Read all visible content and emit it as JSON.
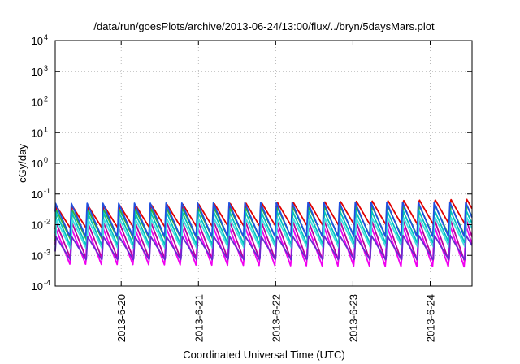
{
  "chart_data": {
    "type": "line",
    "title": "/data/run/goesPlots/archive/2013-06-24/13:00/flux/../bryn/5daysMars.plot",
    "xlabel": "Coordinated Universal Time (UTC)",
    "ylabel": "cGy/day",
    "y_scale": "log",
    "ylim": [
      0.0001,
      10000
    ],
    "xlim": [
      "2013-06-19T03:30",
      "2013-06-24T13:00"
    ],
    "y_ticks": [
      {
        "value": 0.0001,
        "base": "10",
        "exp": "-4"
      },
      {
        "value": 0.001,
        "base": "10",
        "exp": "-3"
      },
      {
        "value": 0.01,
        "base": "10",
        "exp": "-2"
      },
      {
        "value": 0.1,
        "base": "10",
        "exp": "-1"
      },
      {
        "value": 1,
        "base": "10",
        "exp": "0"
      },
      {
        "value": 10,
        "base": "10",
        "exp": "1"
      },
      {
        "value": 100,
        "base": "10",
        "exp": "2"
      },
      {
        "value": 1000,
        "base": "10",
        "exp": "3"
      },
      {
        "value": 10000,
        "base": "10",
        "exp": "4"
      }
    ],
    "x_ticks": [
      {
        "value": "2013-06-20T00:00",
        "label": "2013-6-20"
      },
      {
        "value": "2013-06-21T00:00",
        "label": "2013-6-21"
      },
      {
        "value": "2013-06-22T00:00",
        "label": "2013-6-22"
      },
      {
        "value": "2013-06-23T00:00",
        "label": "2013-6-23"
      },
      {
        "value": "2013-06-24T00:00",
        "label": "2013-6-24"
      }
    ],
    "grid": true,
    "legend": "none",
    "oscillation_period_hours": 4.9,
    "series": [
      {
        "color": "#e00000",
        "peak_start": 0.04,
        "peak_end": 0.07,
        "trough_start": 0.007,
        "trough_end": 0.01
      },
      {
        "color": "#b8009c",
        "peak_start": 0.012,
        "peak_end": 0.015,
        "trough_start": 0.0008,
        "trough_end": 0.0006
      },
      {
        "color": "#f000f0",
        "peak_start": 0.008,
        "peak_end": 0.01,
        "trough_start": 0.0005,
        "trough_end": 0.0004
      },
      {
        "color": "#30b040",
        "peak_start": 0.03,
        "peak_end": 0.045,
        "trough_start": 0.003,
        "trough_end": 0.004
      },
      {
        "color": "#00c0c0",
        "peak_start": 0.025,
        "peak_end": 0.03,
        "trough_start": 0.002,
        "trough_end": 0.0025
      },
      {
        "color": "#2050e0",
        "peak_start": 0.05,
        "peak_end": 0.055,
        "trough_start": 0.004,
        "trough_end": 0.004
      },
      {
        "color": "#40e0e0",
        "peak_start": 0.015,
        "peak_end": 0.018,
        "trough_start": 0.0015,
        "trough_end": 0.0018
      },
      {
        "color": "#6a2ad0",
        "peak_start": 0.004,
        "peak_end": 0.0045,
        "trough_start": 0.0007,
        "trough_end": 0.0007
      }
    ]
  }
}
